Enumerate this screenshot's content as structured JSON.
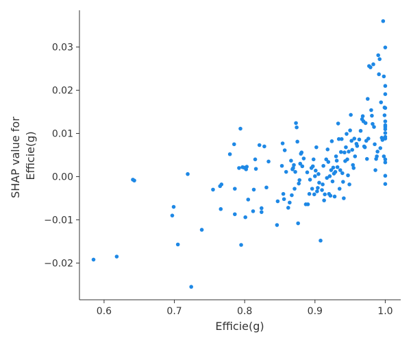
{
  "chart_data": {
    "type": "scatter",
    "xlabel": "Efficie(g)",
    "ylabel_lines": [
      "SHAP value for",
      "Efficie(g)"
    ],
    "xlim": [
      0.565,
      1.022
    ],
    "ylim": [
      -0.0285,
      0.0385
    ],
    "x_ticks": [
      0.6,
      0.7,
      0.8,
      0.9,
      1.0
    ],
    "x_tick_labels": [
      "0.6",
      "0.7",
      "0.8",
      "0.9",
      "1.0"
    ],
    "y_ticks": [
      -0.02,
      -0.01,
      0.0,
      0.01,
      0.02,
      0.03
    ],
    "y_tick_labels": [
      "−0.02",
      "−0.01",
      "0.00",
      "0.01",
      "0.02",
      "0.03"
    ],
    "grid": false,
    "point_color": "#1e88e5",
    "points": [
      [
        0.585,
        -0.0192
      ],
      [
        0.618,
        -0.0185
      ],
      [
        0.641,
        -0.0007
      ],
      [
        0.643,
        -0.0009
      ],
      [
        0.697,
        -0.009
      ],
      [
        0.699,
        -0.007
      ],
      [
        0.705,
        -0.0157
      ],
      [
        0.719,
        0.0006
      ],
      [
        0.724,
        -0.0255
      ],
      [
        0.739,
        -0.0123
      ],
      [
        0.755,
        -0.003
      ],
      [
        0.765,
        -0.0022
      ],
      [
        0.766,
        -0.0075
      ],
      [
        0.767,
        -0.0018
      ],
      [
        0.779,
        0.0052
      ],
      [
        0.785,
        0.0075
      ],
      [
        0.786,
        -0.0087
      ],
      [
        0.786,
        -0.0028
      ],
      [
        0.792,
        0.002
      ],
      [
        0.794,
        0.0111
      ],
      [
        0.795,
        -0.0158
      ],
      [
        0.797,
        0.0022
      ],
      [
        0.799,
        0.0021
      ],
      [
        0.801,
        -0.0094
      ],
      [
        0.802,
        0.0017
      ],
      [
        0.803,
        0.0023
      ],
      [
        0.805,
        -0.0053
      ],
      [
        0.812,
        -0.008
      ],
      [
        0.813,
        -0.003
      ],
      [
        0.815,
        0.004
      ],
      [
        0.816,
        0.0018
      ],
      [
        0.821,
        0.0073
      ],
      [
        0.824,
        -0.0073
      ],
      [
        0.824,
        -0.0082
      ],
      [
        0.828,
        0.007
      ],
      [
        0.831,
        -0.0025
      ],
      [
        0.834,
        0.0035
      ],
      [
        0.846,
        -0.0112
      ],
      [
        0.847,
        -0.0057
      ],
      [
        0.853,
        0.0025
      ],
      [
        0.854,
        0.0077
      ],
      [
        0.855,
        -0.004
      ],
      [
        0.856,
        -0.0052
      ],
      [
        0.857,
        0.0061
      ],
      [
        0.859,
        0.0011
      ],
      [
        0.862,
        -0.0072
      ],
      [
        0.864,
        -0.006
      ],
      [
        0.866,
        0.0037
      ],
      [
        0.867,
        -0.0043
      ],
      [
        0.868,
        0.0017
      ],
      [
        0.869,
        0.002
      ],
      [
        0.87,
        0.0027
      ],
      [
        0.871,
        -0.0028
      ],
      [
        0.872,
        0.0011
      ],
      [
        0.873,
        0.0124
      ],
      [
        0.874,
        0.0114
      ],
      [
        0.875,
        0.0081
      ],
      [
        0.876,
        -0.0108
      ],
      [
        0.877,
        -0.0016
      ],
      [
        0.878,
        -0.0008
      ],
      [
        0.879,
        0.003
      ],
      [
        0.88,
        0.0053
      ],
      [
        0.881,
        0.0056
      ],
      [
        0.882,
        0.0024
      ],
      [
        0.884,
        0.0042
      ],
      [
        0.887,
        -0.0064
      ],
      [
        0.889,
        0.001
      ],
      [
        0.89,
        -0.0064
      ],
      [
        0.892,
        -0.004
      ],
      [
        0.893,
        -0.0007
      ],
      [
        0.895,
        0.002
      ],
      [
        0.896,
        -0.0028
      ],
      [
        0.897,
        0.0024
      ],
      [
        0.898,
        0.004
      ],
      [
        0.899,
        -0.0041
      ],
      [
        0.9,
        0.0001
      ],
      [
        0.901,
        0.0014
      ],
      [
        0.902,
        0.0068
      ],
      [
        0.903,
        -0.0034
      ],
      [
        0.904,
        -0.0026
      ],
      [
        0.905,
        0.0006
      ],
      [
        0.906,
        -0.0014
      ],
      [
        0.908,
        -0.0148
      ],
      [
        0.91,
        -0.0031
      ],
      [
        0.911,
        -0.0018
      ],
      [
        0.912,
        0.0025
      ],
      [
        0.913,
        -0.0055
      ],
      [
        0.914,
        -0.0041
      ],
      [
        0.916,
        0.004
      ],
      [
        0.917,
        -0.0003
      ],
      [
        0.918,
        0.0063
      ],
      [
        0.919,
        0.0034
      ],
      [
        0.92,
        -0.004
      ],
      [
        0.921,
        0.0001
      ],
      [
        0.922,
        -0.0044
      ],
      [
        0.923,
        0.0015
      ],
      [
        0.924,
        0.0082
      ],
      [
        0.925,
        -0.0011
      ],
      [
        0.926,
        0.0021
      ],
      [
        0.927,
        0.0007
      ],
      [
        0.928,
        -0.0046
      ],
      [
        0.929,
        0.0011
      ],
      [
        0.93,
        0.0047
      ],
      [
        0.931,
        0.0037
      ],
      [
        0.932,
        0.0022
      ],
      [
        0.933,
        0.0123
      ],
      [
        0.934,
        0.0087
      ],
      [
        0.935,
        -0.0028
      ],
      [
        0.936,
        0.0015
      ],
      [
        0.937,
        0.0057
      ],
      [
        0.938,
        0.0087
      ],
      [
        0.939,
        0.0008
      ],
      [
        0.94,
        -0.0012
      ],
      [
        0.941,
        -0.005
      ],
      [
        0.942,
        0.0056
      ],
      [
        0.943,
        0.0036
      ],
      [
        0.944,
        0.0068
      ],
      [
        0.945,
        0.0099
      ],
      [
        0.946,
        0.004
      ],
      [
        0.947,
        0.0003
      ],
      [
        0.948,
        0.0058
      ],
      [
        0.949,
        -0.0018
      ],
      [
        0.95,
        0.0107
      ],
      [
        0.951,
        0.0143
      ],
      [
        0.952,
        0.0083
      ],
      [
        0.953,
        0.0062
      ],
      [
        0.954,
        0.0027
      ],
      [
        0.955,
        0.002
      ],
      [
        0.956,
        0.0088
      ],
      [
        0.957,
        0.0047
      ],
      [
        0.959,
        0.0076
      ],
      [
        0.96,
        0.0071
      ],
      [
        0.963,
        0.0086
      ],
      [
        0.965,
        0.0106
      ],
      [
        0.967,
        0.0133
      ],
      [
        0.968,
        0.014
      ],
      [
        0.969,
        0.0128
      ],
      [
        0.97,
        0.007
      ],
      [
        0.971,
        0.0068
      ],
      [
        0.972,
        0.0124
      ],
      [
        0.973,
        0.0083
      ],
      [
        0.974,
        0.0041
      ],
      [
        0.975,
        0.018
      ],
      [
        0.976,
        0.0088
      ],
      [
        0.977,
        0.0256
      ],
      [
        0.979,
        0.0253
      ],
      [
        0.98,
        0.0154
      ],
      [
        0.981,
        0.0141
      ],
      [
        0.982,
        0.0122
      ],
      [
        0.983,
        0.026
      ],
      [
        0.984,
        0.0115
      ],
      [
        0.985,
        0.0075
      ],
      [
        0.986,
        0.0015
      ],
      [
        0.987,
        0.0041
      ],
      [
        0.988,
        0.0047
      ],
      [
        0.989,
        0.0058
      ],
      [
        0.99,
        0.0281
      ],
      [
        0.991,
        0.0237
      ],
      [
        0.992,
        0.0272
      ],
      [
        0.993,
        0.0066
      ],
      [
        0.994,
        0.0172
      ],
      [
        0.995,
        0.009
      ],
      [
        0.996,
        0.0085
      ],
      [
        0.997,
        0.036
      ],
      [
        0.998,
        0.0232
      ],
      [
        0.998,
        0.0047
      ],
      [
        0.999,
        0.016
      ],
      [
        0.999,
        0.0142
      ],
      [
        1.0,
        0.0299
      ],
      [
        1.0,
        0.021
      ],
      [
        1.0,
        0.0191
      ],
      [
        1.0,
        0.0159
      ],
      [
        1.0,
        0.0128
      ],
      [
        1.0,
        0.0119
      ],
      [
        1.0,
        0.0115
      ],
      [
        1.0,
        0.011
      ],
      [
        1.0,
        0.0101
      ],
      [
        1.0,
        0.0092
      ],
      [
        1.0,
        0.0088
      ],
      [
        1.0,
        0.004
      ],
      [
        1.0,
        0.0033
      ],
      [
        1.0,
        0.0002
      ],
      [
        1.0,
        -0.0017
      ]
    ]
  }
}
